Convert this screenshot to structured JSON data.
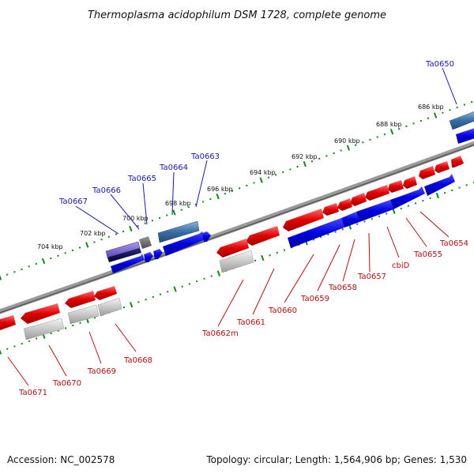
{
  "title": "Thermoplasma acidophilum DSM 1728, complete genome",
  "footer": {
    "accession": "Accession: NC_002578",
    "summary": "Topology: circular; Length: 1,564,906 bp; Genes: 1,530"
  },
  "colors": {
    "forward_gene": "#1010e0",
    "reverse_gene": "#e01010",
    "backbone": "#707070",
    "scale_dots": "#118811",
    "blue_label": "#1a1aa8",
    "red_label": "#b01010",
    "cds_red": "#e0e0e0",
    "cds_blue": "#3a6ea5"
  },
  "scale_ticks": [
    "686 kbp",
    "688 kbp",
    "690 kbp",
    "692 kbp",
    "694 kbp",
    "696 kbp",
    "698 kbp",
    "700 kbp",
    "702 kbp",
    "704 kbp"
  ],
  "forward_labels": [
    "Ta0650",
    "Ta0663",
    "Ta0664",
    "Ta0665",
    "Ta0666",
    "Ta0667"
  ],
  "reverse_labels": [
    "Ta0654",
    "Ta0655",
    "cbiD",
    "Ta0657",
    "Ta0658",
    "Ta0659",
    "Ta0660",
    "Ta0661",
    "Ta0662m",
    "Ta0668",
    "Ta0669",
    "Ta0670",
    "Ta0671"
  ]
}
